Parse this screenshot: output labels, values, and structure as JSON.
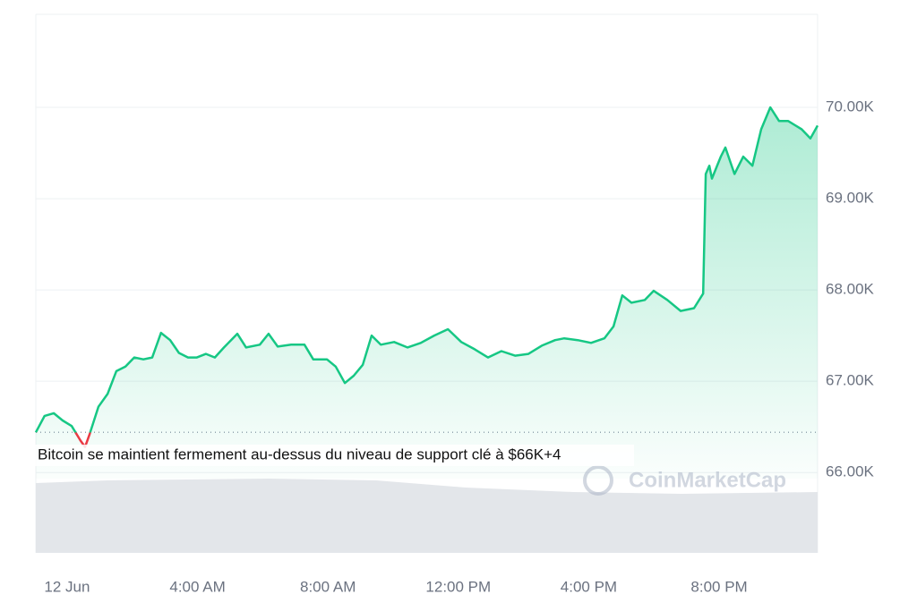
{
  "chart_data": {
    "type": "area-line",
    "annotation": "Bitcoin se maintient fermement au-dessus du niveau de support clé à $66K+4",
    "watermark": "CoinMarketCap",
    "up_color": "#16c784",
    "down_color": "#ea3943",
    "reference_value": 66440,
    "x": [
      -0.96,
      -0.69,
      -0.41,
      -0.14,
      0.14,
      0.41,
      0.55,
      0.69,
      0.96,
      1.24,
      1.51,
      1.79,
      2.06,
      2.34,
      2.61,
      2.88,
      3.16,
      3.43,
      3.71,
      3.98,
      4.26,
      4.53,
      4.81,
      5.22,
      5.49,
      5.91,
      6.18,
      6.46,
      6.87,
      7.28,
      7.55,
      7.97,
      8.24,
      8.52,
      8.79,
      9.07,
      9.34,
      9.62,
      10.03,
      10.44,
      10.85,
      11.26,
      11.68,
      12.09,
      12.5,
      12.91,
      13.32,
      13.74,
      14.15,
      14.56,
      14.97,
      15.25,
      15.66,
      16.07,
      16.48,
      16.76,
      17.03,
      17.31,
      17.72,
      17.99,
      18.41,
      18.82,
      19.23,
      19.51,
      19.59,
      19.7,
      19.78,
      20.05,
      20.19,
      20.47,
      20.74,
      21.02,
      21.29,
      21.57,
      21.84,
      22.12,
      22.53,
      22.8,
      23.02
    ],
    "values": [
      66440,
      66620,
      66650,
      66570,
      66510,
      66350,
      66280,
      66420,
      66720,
      66860,
      67110,
      67160,
      67260,
      67240,
      67260,
      67530,
      67450,
      67310,
      67260,
      67260,
      67300,
      67260,
      67370,
      67520,
      67370,
      67400,
      67520,
      67380,
      67400,
      67400,
      67240,
      67240,
      67160,
      66980,
      67060,
      67180,
      67500,
      67400,
      67430,
      67370,
      67420,
      67500,
      67570,
      67430,
      67350,
      67260,
      67330,
      67280,
      67300,
      67390,
      67450,
      67470,
      67450,
      67420,
      67470,
      67600,
      67940,
      67860,
      67890,
      67990,
      67890,
      67770,
      67800,
      67960,
      69270,
      69360,
      69220,
      69460,
      69560,
      69270,
      69460,
      69360,
      69760,
      70000,
      69850,
      69850,
      69760,
      69660,
      69800
    ],
    "xlim": [
      -0.96,
      23.02
    ],
    "xticks": [
      {
        "value": 0,
        "label": "12 Jun"
      },
      {
        "value": 4,
        "label": "4:00 AM"
      },
      {
        "value": 8,
        "label": "8:00 AM"
      },
      {
        "value": 12,
        "label": "12:00 PM"
      },
      {
        "value": 16,
        "label": "4:00 PM"
      },
      {
        "value": 20,
        "label": "8:00 PM"
      }
    ],
    "ylim": [
      65120,
      71000
    ],
    "yticks": [
      {
        "value": 66000,
        "label": "66.00K"
      },
      {
        "value": 67000,
        "label": "67.00K"
      },
      {
        "value": 68000,
        "label": "68.00K"
      },
      {
        "value": 69000,
        "label": "69.00K"
      },
      {
        "value": 70000,
        "label": "70.00K"
      }
    ],
    "grid": true
  }
}
